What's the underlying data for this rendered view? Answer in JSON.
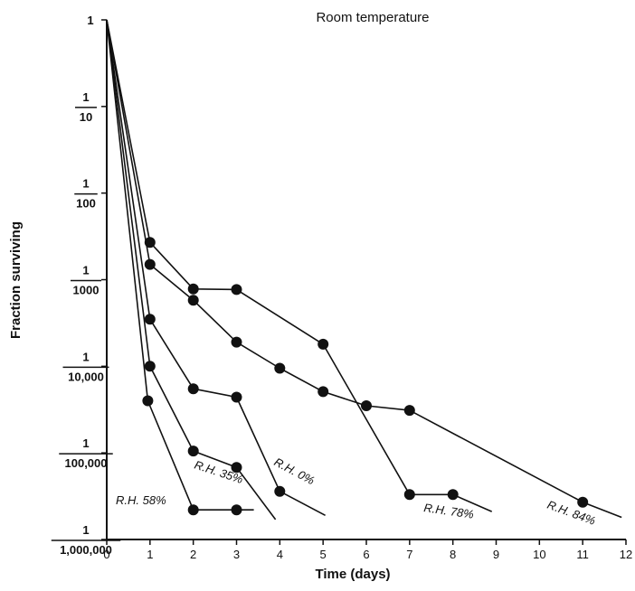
{
  "chart_data": {
    "type": "line",
    "title": "Room temperature",
    "xlabel": "Time (days)",
    "ylabel": "Fraction surviving",
    "xlim": [
      0,
      12
    ],
    "ylim_log10": [
      -6,
      0
    ],
    "y_scale": "log",
    "grid": false,
    "x_ticks": [
      "0",
      "1",
      "2",
      "3",
      "4",
      "5",
      "6",
      "7",
      "8",
      "9",
      "10",
      "11",
      "12"
    ],
    "y_ticks": [
      {
        "num": "1",
        "den": "",
        "value": 1
      },
      {
        "num": "1",
        "den": "10",
        "value": 0.1
      },
      {
        "num": "1",
        "den": "100",
        "value": 0.01
      },
      {
        "num": "1",
        "den": "1000",
        "value": 0.001
      },
      {
        "num": "1",
        "den": "10,000",
        "value": 0.0001
      },
      {
        "num": "1",
        "den": "100,000",
        "value": 1e-05
      },
      {
        "num": "1",
        "den": "1,000,000",
        "value": 1e-06
      }
    ],
    "series": [
      {
        "name": "R.H. 58%",
        "points": [
          [
            0,
            1
          ],
          [
            0.95,
            4e-05
          ],
          [
            2,
            2.2e-06
          ],
          [
            3,
            2.2e-06
          ]
        ],
        "tail": [
          [
            3.4,
            2.2e-06
          ]
        ]
      },
      {
        "name": "R.H. 35%",
        "points": [
          [
            0,
            1
          ],
          [
            1,
            0.0001
          ],
          [
            2,
            1.05e-05
          ],
          [
            3,
            6.8e-06
          ]
        ],
        "tail": [
          [
            3.9,
            1.7e-06
          ]
        ]
      },
      {
        "name": "R.H. 0%",
        "points": [
          [
            0,
            1
          ],
          [
            1,
            0.00035
          ],
          [
            2,
            5.5e-05
          ],
          [
            3,
            4.4e-05
          ],
          [
            4,
            3.6e-06
          ]
        ],
        "tail": [
          [
            5.05,
            1.9e-06
          ]
        ]
      },
      {
        "name": "R.H. 78%",
        "points": [
          [
            0,
            1
          ],
          [
            1,
            0.0027
          ],
          [
            2,
            0.00078
          ],
          [
            3,
            0.00077
          ],
          [
            5,
            0.00018
          ],
          [
            7,
            3.3e-06
          ],
          [
            8,
            3.3e-06
          ]
        ],
        "tail": [
          [
            8.9,
            2.1e-06
          ]
        ]
      },
      {
        "name": "R.H. 84%",
        "points": [
          [
            0,
            1
          ],
          [
            1,
            0.0015
          ],
          [
            2,
            0.00058
          ],
          [
            3,
            0.00019
          ],
          [
            4,
            9.5e-05
          ],
          [
            5,
            5.1e-05
          ],
          [
            6,
            3.5e-05
          ],
          [
            7,
            3.1e-05
          ],
          [
            11,
            2.7e-06
          ]
        ],
        "tail": [
          [
            11.9,
            1.8e-06
          ]
        ]
      }
    ]
  }
}
